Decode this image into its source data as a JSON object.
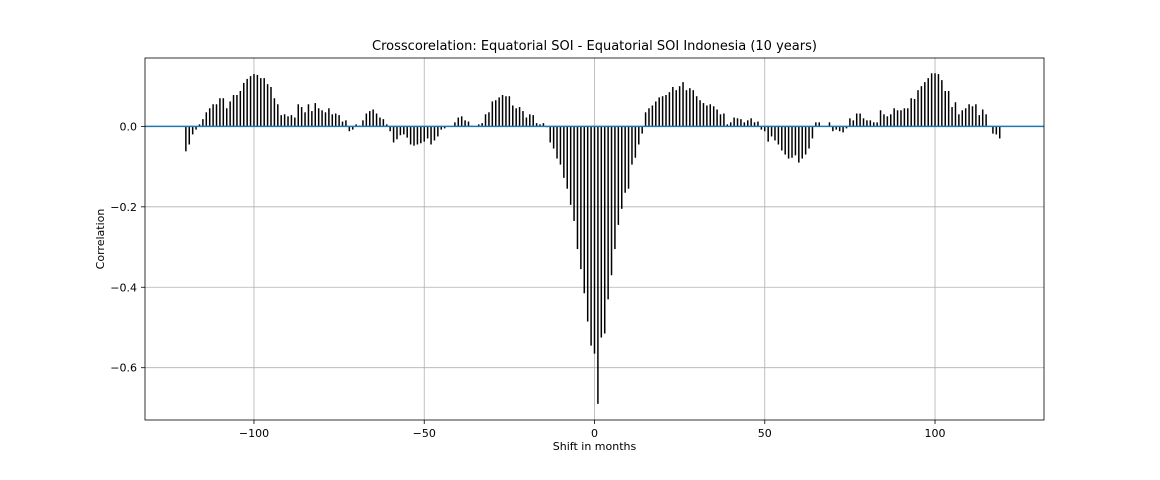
{
  "chart_data": {
    "type": "bar",
    "title": "Crosscorelation: Equatorial SOI - Equatorial SOI Indonesia (10 years)",
    "xlabel": "Shift in months",
    "ylabel": "Correlation",
    "xlim": [
      -132,
      132
    ],
    "ylim": [
      -0.73,
      0.17
    ],
    "xticks": [
      -100,
      -50,
      0,
      50,
      100
    ],
    "xtick_labels": [
      "−100",
      "−50",
      "0",
      "50",
      "100"
    ],
    "yticks": [
      0.0,
      -0.2,
      -0.4,
      -0.6
    ],
    "ytick_labels": [
      "0.0",
      "−0.2",
      "−0.4",
      "−0.6"
    ],
    "grid": true,
    "baseline": 0,
    "x_start": -120,
    "x_step": 1,
    "values": [
      -0.062,
      -0.045,
      -0.02,
      -0.008,
      0.005,
      0.018,
      0.035,
      0.045,
      0.055,
      0.055,
      0.07,
      0.07,
      0.045,
      0.062,
      0.078,
      0.078,
      0.088,
      0.108,
      0.118,
      0.125,
      0.13,
      0.128,
      0.12,
      0.12,
      0.105,
      0.098,
      0.07,
      0.055,
      0.028,
      0.03,
      0.025,
      0.028,
      0.022,
      0.055,
      0.048,
      0.035,
      0.055,
      0.038,
      0.058,
      0.045,
      0.04,
      0.035,
      0.045,
      0.03,
      0.032,
      0.028,
      0.012,
      0.015,
      -0.012,
      -0.008,
      0.005,
      0.002,
      0.015,
      0.032,
      0.038,
      0.042,
      0.032,
      0.022,
      0.018,
      0.005,
      -0.012,
      -0.04,
      -0.032,
      -0.022,
      -0.02,
      -0.028,
      -0.045,
      -0.048,
      -0.045,
      -0.042,
      -0.038,
      -0.03,
      -0.045,
      -0.035,
      -0.025,
      -0.008,
      -0.005,
      0.0,
      0.0,
      0.01,
      0.022,
      0.025,
      0.015,
      0.012,
      0.002,
      0.0,
      0.005,
      0.008,
      0.03,
      0.035,
      0.062,
      0.065,
      0.072,
      0.078,
      0.075,
      0.075,
      0.052,
      0.045,
      0.048,
      0.038,
      0.022,
      0.03,
      0.028,
      0.008,
      0.005,
      0.008,
      -0.002,
      -0.04,
      -0.055,
      -0.08,
      -0.095,
      -0.128,
      -0.155,
      -0.195,
      -0.235,
      -0.305,
      -0.355,
      -0.415,
      -0.485,
      -0.545,
      -0.565,
      -0.69,
      -0.525,
      -0.515,
      -0.43,
      -0.37,
      -0.305,
      -0.245,
      -0.205,
      -0.165,
      -0.155,
      -0.095,
      -0.078,
      -0.045,
      -0.018,
      0.035,
      0.045,
      0.052,
      0.062,
      0.072,
      0.075,
      0.078,
      0.085,
      0.098,
      0.09,
      0.1,
      0.11,
      0.09,
      0.095,
      0.09,
      0.075,
      0.065,
      0.058,
      0.052,
      0.055,
      0.05,
      0.042,
      0.03,
      0.032,
      0.005,
      0.01,
      0.022,
      0.02,
      0.018,
      0.01,
      0.015,
      0.02,
      0.01,
      0.012,
      -0.008,
      -0.012,
      -0.038,
      -0.025,
      -0.035,
      -0.045,
      -0.06,
      -0.07,
      -0.08,
      -0.078,
      -0.072,
      -0.09,
      -0.08,
      -0.07,
      -0.055,
      -0.03,
      0.01,
      0.01,
      0.0,
      0.0,
      0.01,
      -0.012,
      -0.008,
      -0.012,
      -0.015,
      -0.005,
      0.02,
      0.015,
      0.032,
      0.032,
      0.02,
      0.015,
      0.015,
      0.01,
      0.01,
      0.04,
      0.03,
      0.025,
      0.03,
      0.045,
      0.04,
      0.04,
      0.045,
      0.045,
      0.07,
      0.068,
      0.09,
      0.1,
      0.11,
      0.12,
      0.132,
      0.132,
      0.13,
      0.115,
      0.088,
      0.088,
      0.048,
      0.06,
      0.03,
      0.04,
      0.045,
      0.055,
      0.05,
      0.055,
      0.028,
      0.042,
      0.03,
      0.0,
      -0.018,
      -0.02,
      -0.03
    ]
  }
}
